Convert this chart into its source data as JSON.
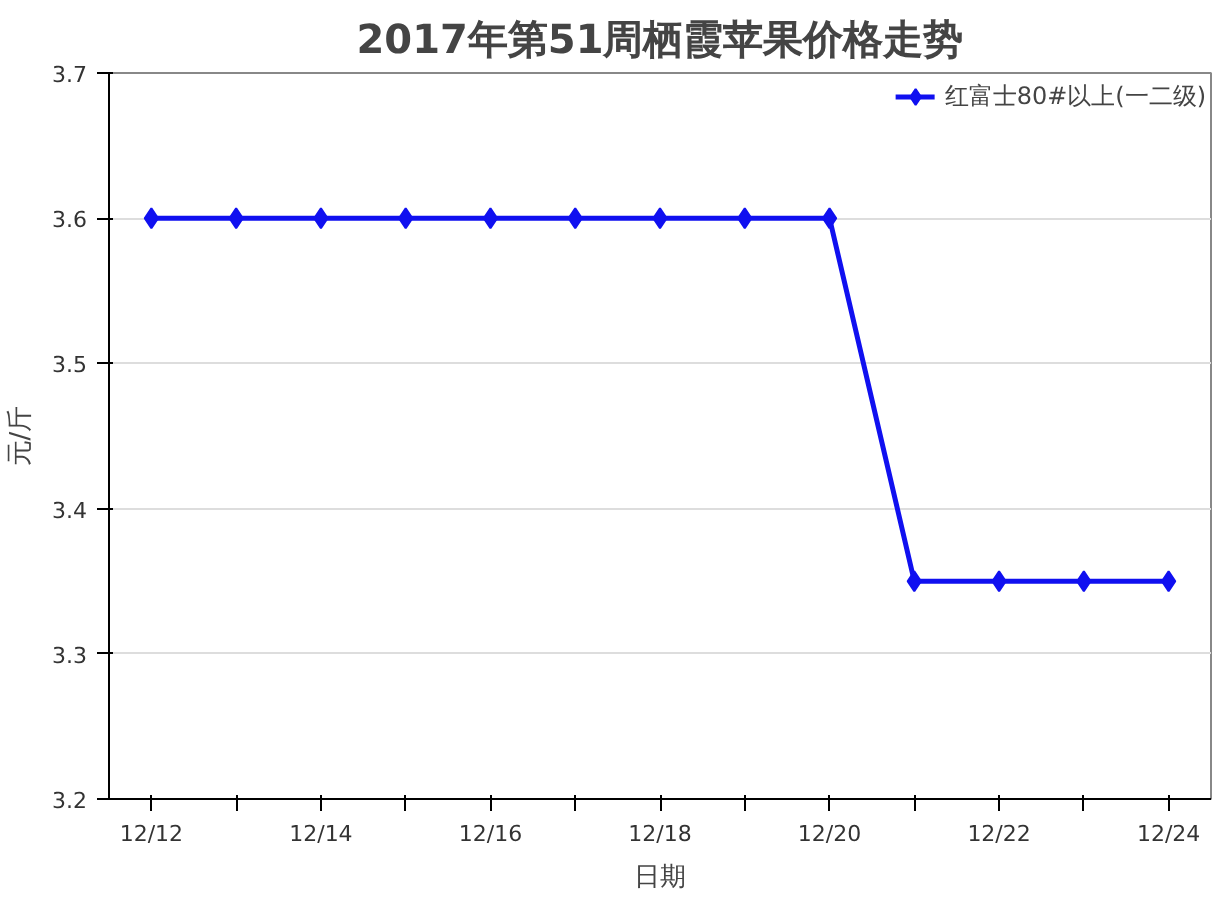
{
  "chart_data": {
    "type": "line",
    "title": "2017年第51周栖霞苹果价格走势",
    "xlabel": "日期",
    "ylabel": "元/斤",
    "categories": [
      "12/12",
      null,
      "12/14",
      null,
      "12/16",
      null,
      "12/18",
      null,
      "12/20",
      null,
      "12/22",
      null,
      "12/24"
    ],
    "series": [
      {
        "name": "红富士80#以上(一二级)",
        "color": "#1010f0",
        "values": [
          3.6,
          3.6,
          3.6,
          3.6,
          3.6,
          3.6,
          3.6,
          3.6,
          3.6,
          3.35,
          3.35,
          3.35,
          3.35
        ]
      }
    ],
    "ylim": [
      3.2,
      3.7
    ],
    "yticks": [
      3.2,
      3.3,
      3.4,
      3.5,
      3.6,
      3.7
    ],
    "grid": "y",
    "legend": "top right",
    "marker": "diamond",
    "line_style": "solid"
  }
}
